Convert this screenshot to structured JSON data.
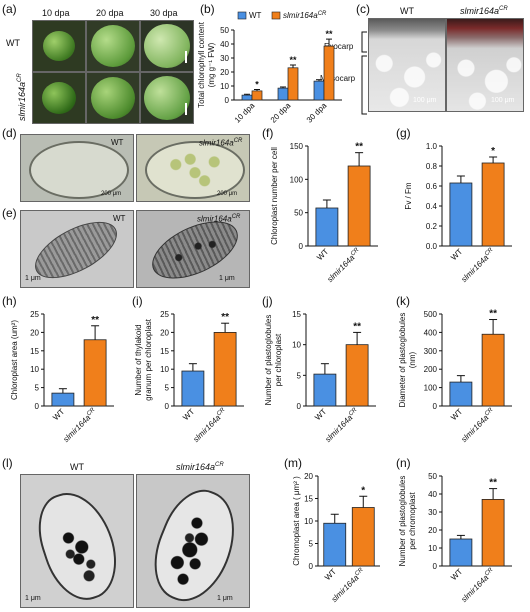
{
  "panels": {
    "a": "(a)",
    "b": "(b)",
    "c": "(c)",
    "d": "(d)",
    "e": "(e)",
    "f": "(f)",
    "g": "(g)",
    "h": "(h)",
    "i": "(i)",
    "j": "(j)",
    "k": "(k)",
    "l": "(l)",
    "m": "(m)",
    "n": "(n)"
  },
  "panel_a": {
    "cols": [
      "10 dpa",
      "20 dpa",
      "30 dpa"
    ],
    "rows": [
      "WT",
      "slmir164a"
    ],
    "row_sup": "CR"
  },
  "panel_c": {
    "wt": "WT",
    "mut": "slmir164a",
    "mut_sup": "CR",
    "exocarp": "Exocarp",
    "mesocarp": "Mesocarp",
    "scale": "100 μm",
    "scale2": "100 μm"
  },
  "panel_d": {
    "wt": "WT",
    "mut": "slmir164a",
    "mut_sup": "CR",
    "scale": "200 μm",
    "scale2": "200 μm"
  },
  "panel_e": {
    "wt": "WT",
    "mut": "slmir164a",
    "mut_sup": "CR",
    "scale": "1 μm",
    "scale2": "1 μm"
  },
  "panel_l": {
    "wt": "WT",
    "mut": "slmir164a",
    "mut_sup": "CR",
    "scale": "1 μm",
    "scale2": "1 μm"
  },
  "colors": {
    "wt": "#4a90e2",
    "mut": "#f07f1b"
  },
  "chart_data": [
    {
      "id": "b",
      "type": "bar",
      "categories": [
        "10 dpa",
        "20 dpa",
        "30 dpa"
      ],
      "series": [
        {
          "name": "WT",
          "values": [
            3.5,
            8.5,
            13.5
          ],
          "errors": [
            0.6,
            0.8,
            1.0
          ]
        },
        {
          "name": "slmir164a",
          "name_sup": "CR",
          "values": [
            6.5,
            23,
            38.5
          ],
          "errors": [
            1.0,
            2.0,
            5.0
          ]
        }
      ],
      "sig": [
        "*",
        "**",
        "**"
      ],
      "ylabel": "Total chlorophyll content",
      "ylabel2": "(mg g⁻¹ FW)",
      "ylim": [
        0,
        50
      ],
      "yticks": [
        0,
        10,
        20,
        30,
        40,
        50
      ]
    },
    {
      "id": "f",
      "type": "bar",
      "categories": [
        "WT",
        "slmir164a"
      ],
      "cat_sup": "CR",
      "values": [
        57,
        120
      ],
      "errors": [
        12,
        20
      ],
      "sig": "**",
      "ylabel": "Chloroplast number per cell",
      "ylim": [
        0,
        150
      ],
      "yticks": [
        0,
        50,
        100,
        150
      ]
    },
    {
      "id": "g",
      "type": "bar",
      "categories": [
        "WT",
        "slmir164a"
      ],
      "cat_sup": "CR",
      "values": [
        0.63,
        0.83
      ],
      "errors": [
        0.07,
        0.06
      ],
      "sig": "*",
      "ylabel": "Fv / Fm",
      "ylim": [
        0,
        1.0
      ],
      "yticks": [
        "0.0",
        "0.2",
        "0.4",
        "0.6",
        "0.8",
        "1.0"
      ]
    },
    {
      "id": "h",
      "type": "bar",
      "categories": [
        "WT",
        "slmir164a"
      ],
      "cat_sup": "CR",
      "values": [
        3.5,
        18
      ],
      "errors": [
        1.2,
        3.8
      ],
      "sig": "**",
      "ylabel": "Chloroplast area (um²)",
      "ylim": [
        0,
        25
      ],
      "yticks": [
        0,
        5,
        10,
        15,
        20,
        25
      ]
    },
    {
      "id": "i",
      "type": "bar",
      "categories": [
        "WT",
        "slmir164a"
      ],
      "cat_sup": "CR",
      "values": [
        9.5,
        20
      ],
      "errors": [
        2,
        2.5
      ],
      "sig": "**",
      "ylabel": "Number of thylakoid",
      "ylabel2": "granum per chloroplast",
      "ylim": [
        0,
        25
      ],
      "yticks": [
        0,
        5,
        10,
        15,
        20,
        25
      ]
    },
    {
      "id": "j",
      "type": "bar",
      "categories": [
        "WT",
        "slmir164a"
      ],
      "cat_sup": "CR",
      "values": [
        5.2,
        10
      ],
      "errors": [
        1.7,
        2
      ],
      "sig": "**",
      "ylabel": "Number of plastoglobules",
      "ylabel2": "per chloroplast",
      "ylim": [
        0,
        15
      ],
      "yticks": [
        0,
        5,
        10,
        15
      ]
    },
    {
      "id": "k",
      "type": "bar",
      "categories": [
        "WT",
        "slmir164a"
      ],
      "cat_sup": "CR",
      "values": [
        130,
        390
      ],
      "errors": [
        35,
        80
      ],
      "sig": "**",
      "ylabel": "Diameter of plastoglobules",
      "ylabel2": "(nm)",
      "ylim": [
        0,
        500
      ],
      "yticks": [
        0,
        100,
        200,
        300,
        400,
        500
      ]
    },
    {
      "id": "m",
      "type": "bar",
      "categories": [
        "WT",
        "slmir164a"
      ],
      "cat_sup": "CR",
      "values": [
        9.5,
        13
      ],
      "errors": [
        2,
        2.5
      ],
      "sig": "*",
      "ylabel": "Chromoplast area ( μm² )",
      "ylim": [
        0,
        20
      ],
      "yticks": [
        0,
        5,
        10,
        15,
        20
      ]
    },
    {
      "id": "n",
      "type": "bar",
      "categories": [
        "WT",
        "slmir164a"
      ],
      "cat_sup": "CR",
      "values": [
        15,
        37
      ],
      "errors": [
        2,
        6
      ],
      "sig": "**",
      "ylabel": "Number of plastoglobules",
      "ylabel2": "per chromoplast",
      "ylim": [
        0,
        50
      ],
      "yticks": [
        0,
        10,
        20,
        30,
        40,
        50
      ]
    }
  ]
}
